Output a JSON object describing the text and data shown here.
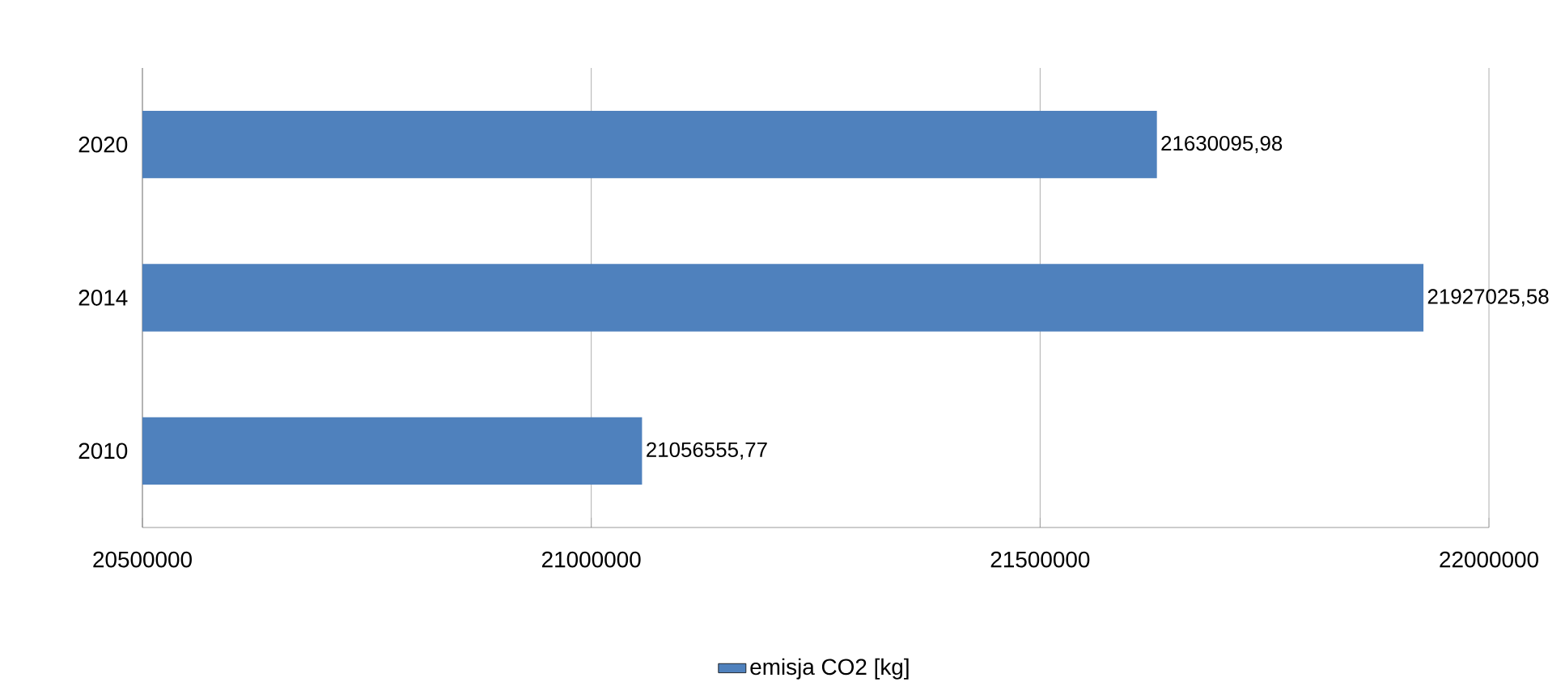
{
  "chart_data": {
    "type": "bar",
    "orientation": "horizontal",
    "categories": [
      "2020",
      "2014",
      "2010"
    ],
    "series": [
      {
        "name": "emisja CO2 [kg]",
        "color": "#4f81bd",
        "values": [
          21630095.98,
          21927025.58,
          21056555.77
        ],
        "value_labels": [
          "21630095,98",
          "21927025,58",
          "21056555,77"
        ]
      }
    ],
    "xlim": [
      20500000,
      22000000
    ],
    "xticks": [
      20500000,
      21000000,
      21500000,
      22000000
    ],
    "grid": "x",
    "legend": "bottom"
  }
}
